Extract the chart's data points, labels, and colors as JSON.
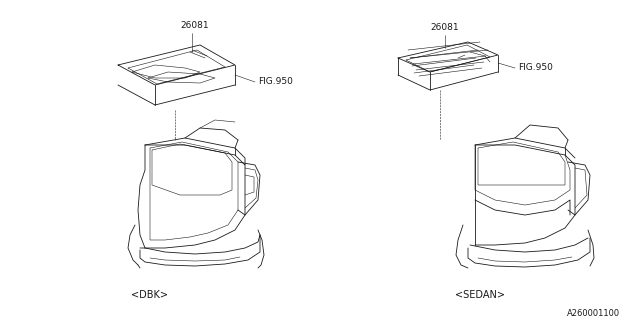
{
  "bg_color": "#ffffff",
  "line_color": "#1a1a1a",
  "text_color": "#1a1a1a",
  "fig_width": 6.4,
  "fig_height": 3.2,
  "dpi": 100,
  "part_number": "26081",
  "label": "FIG.950",
  "caption_left": "<DBK>",
  "caption_right": "<SEDAN>",
  "footer": "A260001100",
  "lw": 0.6,
  "lw_thin": 0.4
}
